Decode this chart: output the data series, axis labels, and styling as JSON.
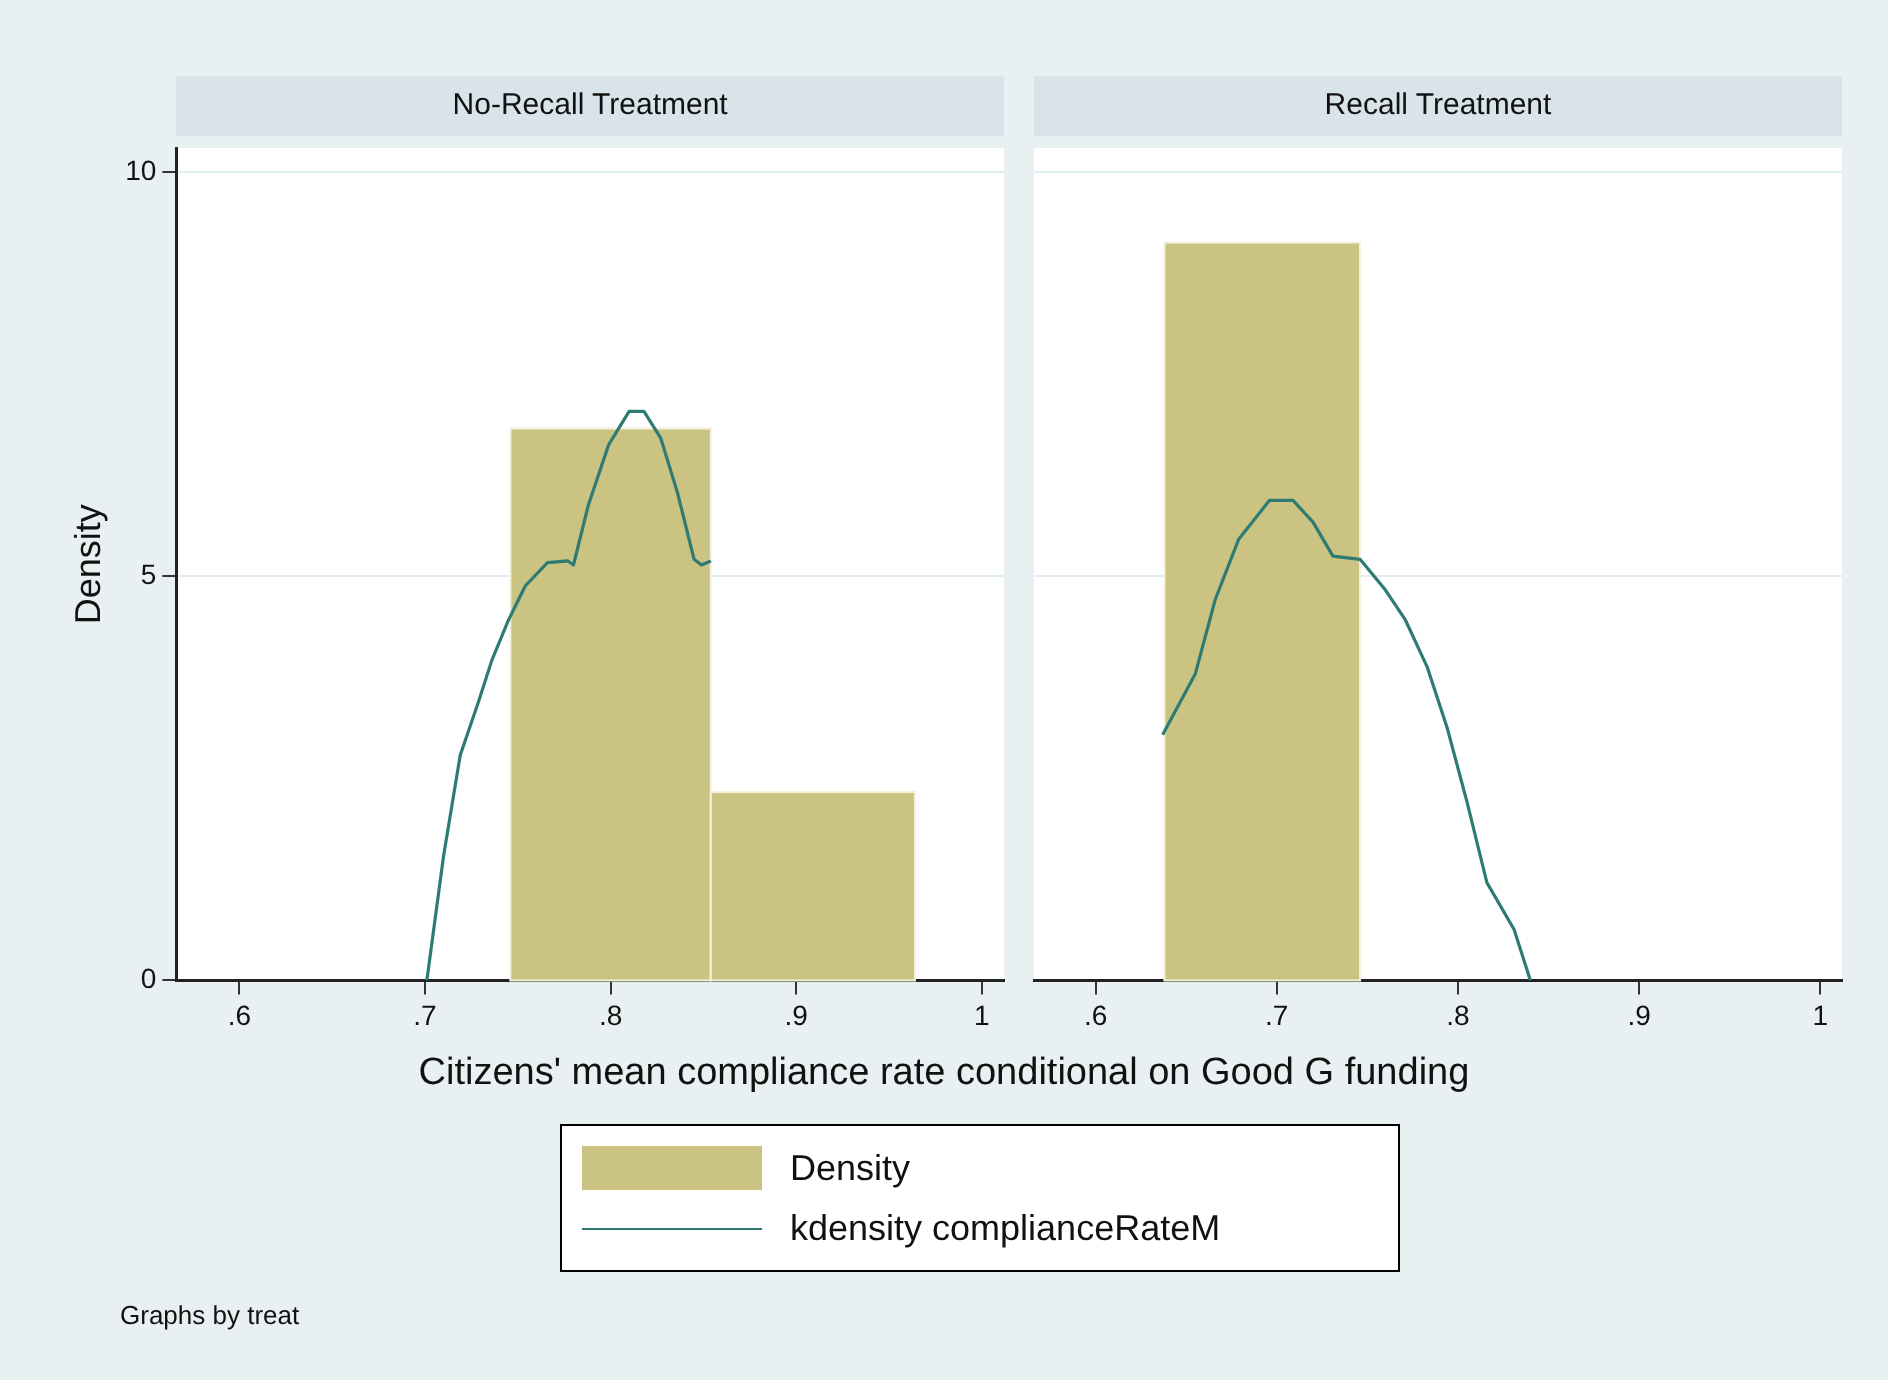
{
  "chart_data": [
    {
      "type": "histogram",
      "title": "No-Recall Treatment",
      "xlabel": "Citizens' mean compliance rate conditional on Good G funding",
      "ylabel": "Density",
      "legend": "bottom",
      "grid": "y",
      "marker": "none",
      "annotations": [
        "Graphs by treat"
      ],
      "xlim": [
        0.566,
        1.012
      ],
      "xticks": [
        {
          "value": 0.6,
          "label": ".6"
        },
        {
          "value": 0.7,
          "label": ".7"
        },
        {
          "value": 0.8,
          "label": ".8"
        },
        {
          "value": 0.9,
          "label": ".9"
        },
        1
      ],
      "ylim": [
        0,
        10.3
      ],
      "yticks": [
        0,
        5,
        10
      ],
      "series": [
        {
          "name": "Density",
          "color": "#cbc382",
          "bins": [
            0.746,
            0.854,
            0.964
          ],
          "values": [
            6.83,
            2.33
          ]
        },
        {
          "name": "kdensity complianceRateM",
          "type": "line",
          "color": "#2e7b73",
          "x": [
            0.701,
            0.71,
            0.719,
            0.729,
            0.736,
            0.745,
            0.754,
            0.766,
            0.777,
            0.78,
            0.788,
            0.799,
            0.81,
            0.818,
            0.827,
            0.836,
            0.845,
            0.849,
            0.854
          ],
          "values": [
            0,
            1.54,
            2.79,
            3.46,
            3.96,
            4.46,
            4.88,
            5.17,
            5.19,
            5.14,
            5.88,
            6.63,
            7.04,
            7.04,
            6.71,
            6.04,
            5.21,
            5.14,
            5.19
          ]
        }
      ]
    },
    {
      "type": "histogram",
      "title": "Recall Treatment",
      "grid": "y",
      "marker": "none",
      "tick_labels": "x",
      "xlim": [
        0.566,
        1.012
      ],
      "xticks": [
        {
          "value": 0.6,
          "label": ".6"
        },
        {
          "value": 0.7,
          "label": ".7"
        },
        {
          "value": 0.8,
          "label": ".8"
        },
        {
          "value": 0.9,
          "label": ".9"
        },
        1
      ],
      "ylim": [
        0,
        10.3
      ],
      "yticks": [
        0,
        5,
        10
      ],
      "series": [
        {
          "color": "#cbc382",
          "bins": [
            0.638,
            0.746
          ],
          "values": [
            9.13
          ]
        },
        {
          "type": "line",
          "color": "#2e7b73",
          "x": [
            0.637,
            0.655,
            0.666,
            0.679,
            0.696,
            0.709,
            0.72,
            0.731,
            0.746,
            0.76,
            0.771,
            0.783,
            0.794,
            0.805,
            0.816,
            0.831,
            0.84
          ],
          "values": [
            3.04,
            3.79,
            4.71,
            5.46,
            5.94,
            5.94,
            5.67,
            5.25,
            5.21,
            4.83,
            4.46,
            3.88,
            3.13,
            2.21,
            1.21,
            0.63,
            0
          ]
        }
      ]
    }
  ]
}
